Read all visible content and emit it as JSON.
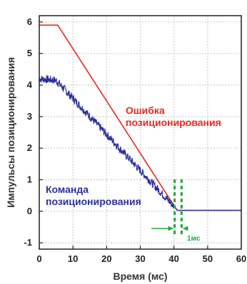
{
  "chart_data": {
    "type": "line",
    "xlabel": "Время (мс)",
    "ylabel": "Импульсы позиционирования",
    "xlim": [
      0,
      60
    ],
    "ylim": [
      -1.2,
      6.2
    ],
    "x_ticks": [
      "0",
      "10",
      "20",
      "30",
      "40",
      "50",
      "60"
    ],
    "y_ticks": [
      "-1",
      "0",
      "1",
      "2",
      "3",
      "4",
      "5",
      "6"
    ],
    "grid": true,
    "series": [
      {
        "name": "Ошибка позиционирования",
        "label_lines": [
          "Ошибка",
          "позиционирования"
        ],
        "color": "#e8281e",
        "x": [
          0,
          5.5,
          40.2,
          41,
          60
        ],
        "y": [
          5.9,
          5.9,
          0.15,
          0.03,
          0.03
        ]
      },
      {
        "name": "Команда позиционирования",
        "label_lines": [
          "Команда",
          "позиционирования"
        ],
        "color": "#2b2f9c",
        "noisy": true,
        "x": [
          0,
          5,
          40,
          41,
          60
        ],
        "y": [
          4.2,
          4.15,
          0.15,
          0.03,
          0.03
        ]
      }
    ],
    "annotations": [
      {
        "text": "1мс",
        "color": "#1aab3a",
        "x_start": 40,
        "x_end": 41
      }
    ]
  }
}
